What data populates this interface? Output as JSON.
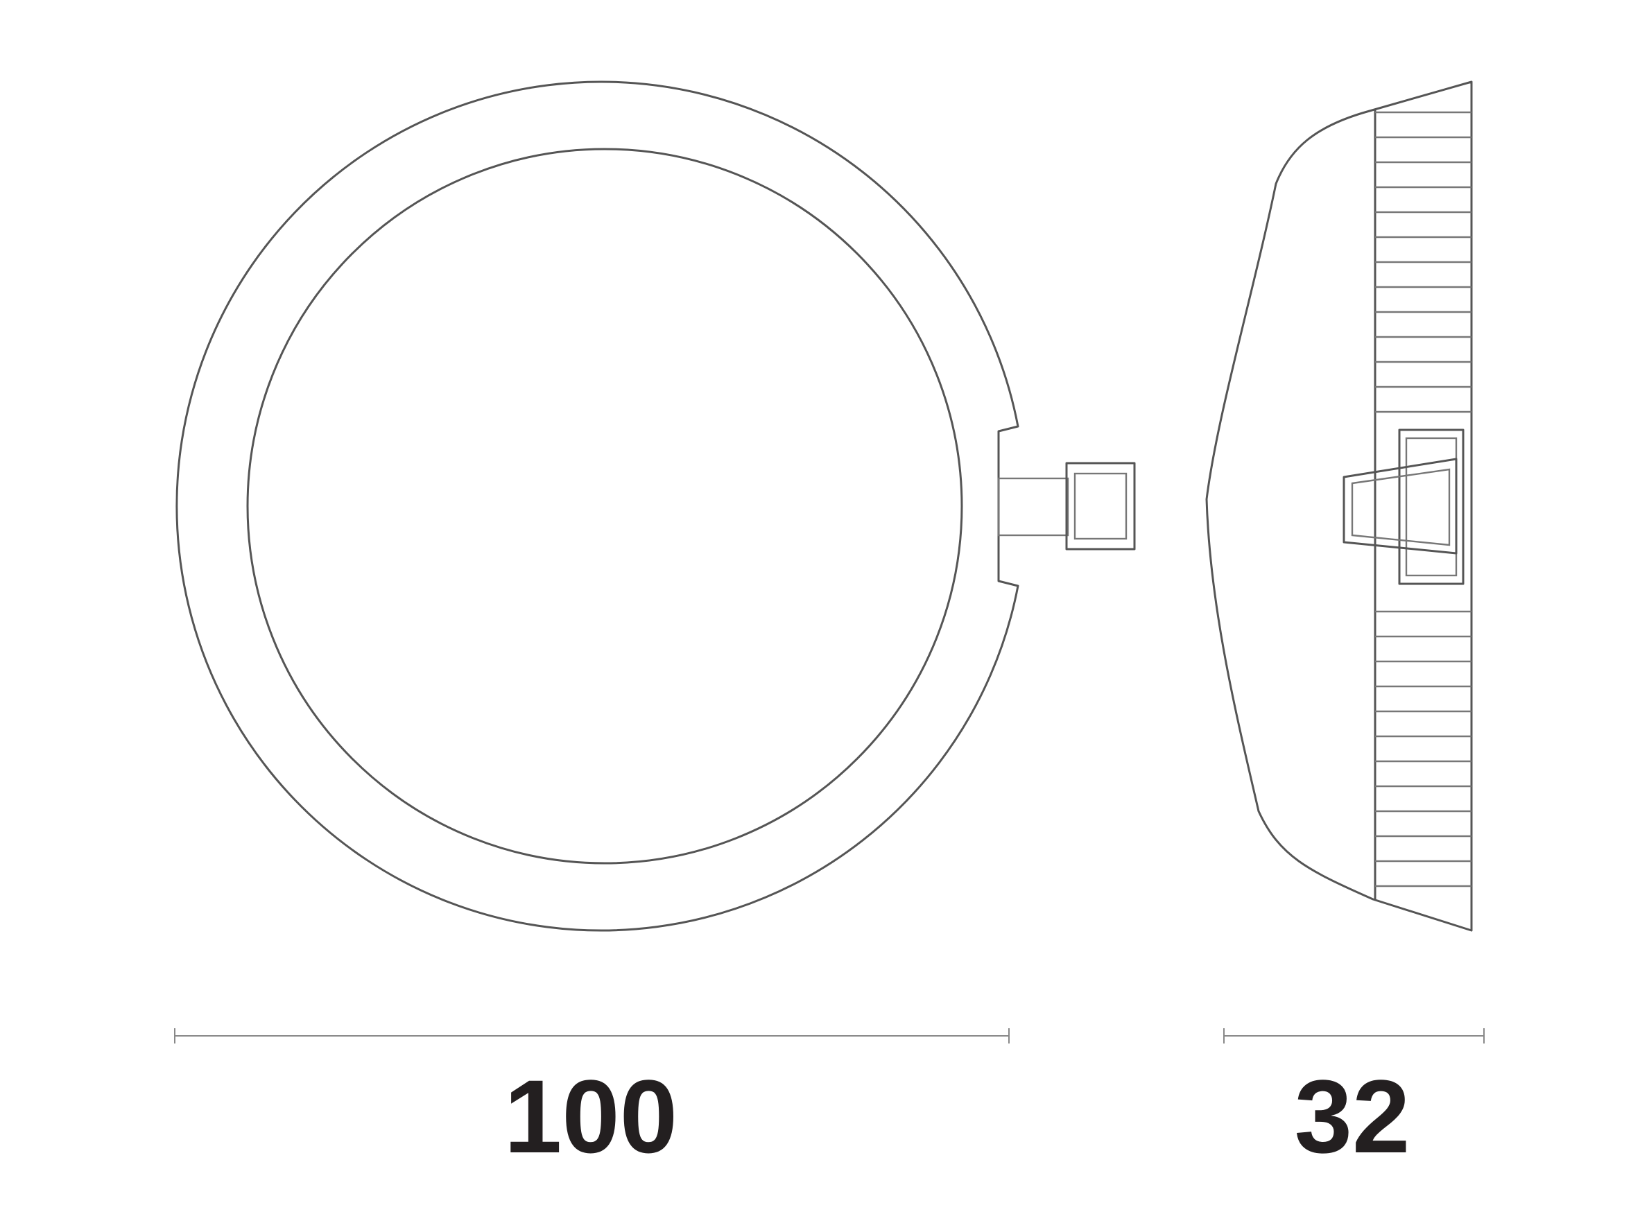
{
  "dimensions": {
    "diameter_label": "100",
    "depth_label": "32"
  },
  "colors": {
    "line": "#555555",
    "dimension_line": "#888888",
    "text": "#231f20",
    "background": "#ffffff"
  }
}
